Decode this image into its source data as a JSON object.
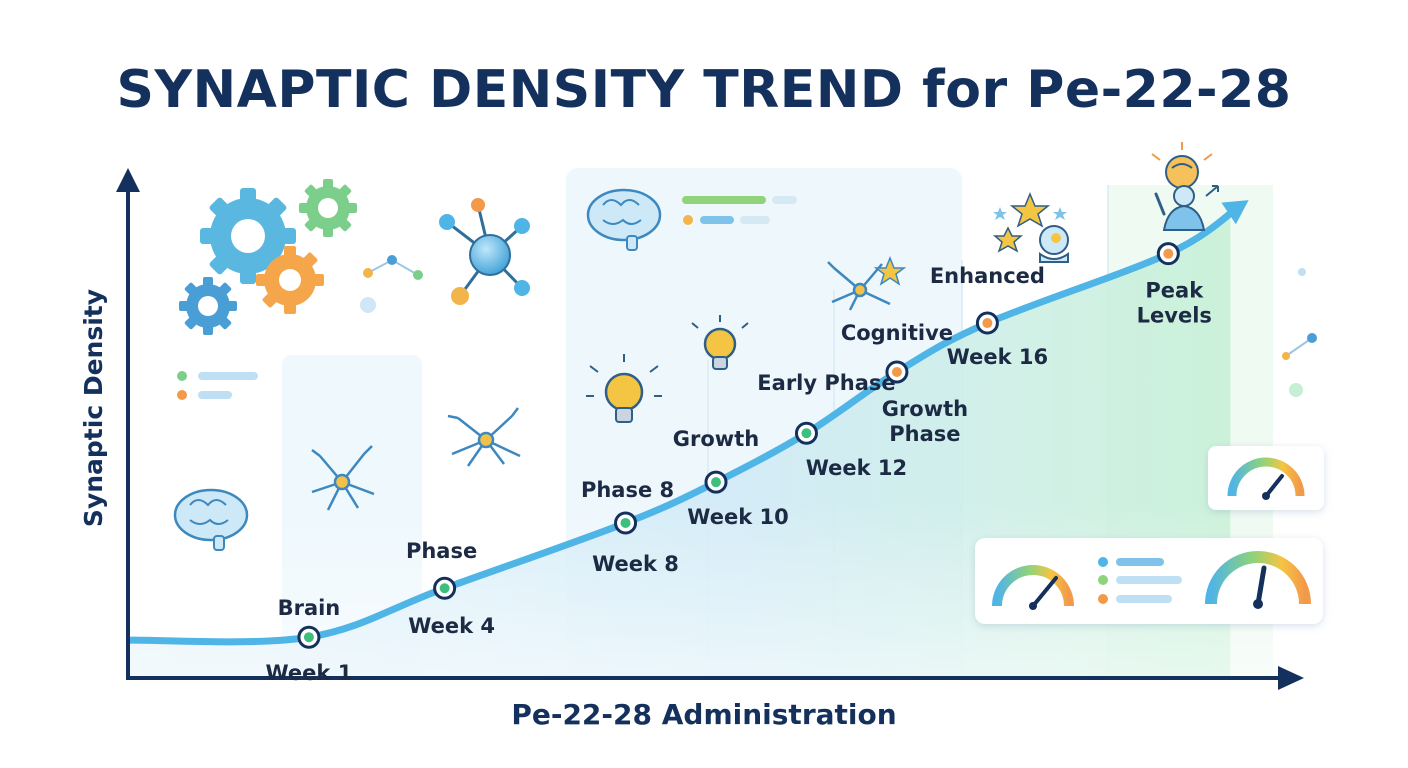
{
  "colors": {
    "title": "#14305c",
    "axis": "#14305c",
    "curve": "#4fb4e6",
    "marker_ring": "#14305c",
    "marker_green": "#3fbf7f",
    "marker_orange": "#f2994a",
    "fill_light": "#e8f5fb",
    "fill_green": "#c6efd5"
  },
  "icons": [
    "gear-icon",
    "brain-icon",
    "neuron-icon",
    "molecule-icon",
    "lightbulb-icon",
    "star-icon",
    "gauge-icon",
    "person-brain-icon",
    "arrow-icon"
  ],
  "chart_data": {
    "type": "line",
    "title": "SYNAPTIC DENSITY TREND for Pe-22-28",
    "xlabel": "Pe-22-28 Administration",
    "ylabel": "Synaptic Density",
    "x": [
      1,
      4,
      8,
      10,
      12,
      14,
      16,
      20
    ],
    "y": [
      10,
      22,
      38,
      48,
      60,
      75,
      87,
      104
    ],
    "xlim": [
      -3,
      23
    ],
    "ylim": [
      0,
      125
    ],
    "grid": false,
    "points": [
      {
        "x": 1,
        "y": 10,
        "marker": "green",
        "tick": "Week 1",
        "note": "Brain"
      },
      {
        "x": 4,
        "y": 22,
        "marker": "green",
        "tick": "Week 4",
        "note": "Phase"
      },
      {
        "x": 8,
        "y": 38,
        "marker": "green",
        "tick": "Week 8",
        "note": "Phase 8"
      },
      {
        "x": 10,
        "y": 48,
        "marker": "green",
        "tick": "Week 10",
        "note": "Growth"
      },
      {
        "x": 12,
        "y": 60,
        "marker": "green",
        "tick": "Week 12",
        "note": "Early Phase"
      },
      {
        "x": 14,
        "y": 75,
        "marker": "orange",
        "tick": "Growth Phase",
        "note": "Cognitive"
      },
      {
        "x": 16,
        "y": 87,
        "marker": "orange",
        "tick": "Week 16",
        "note": "Enhanced"
      },
      {
        "x": 20,
        "y": 104,
        "marker": "orange",
        "tick": "Peak Levels",
        "note": ""
      }
    ]
  }
}
